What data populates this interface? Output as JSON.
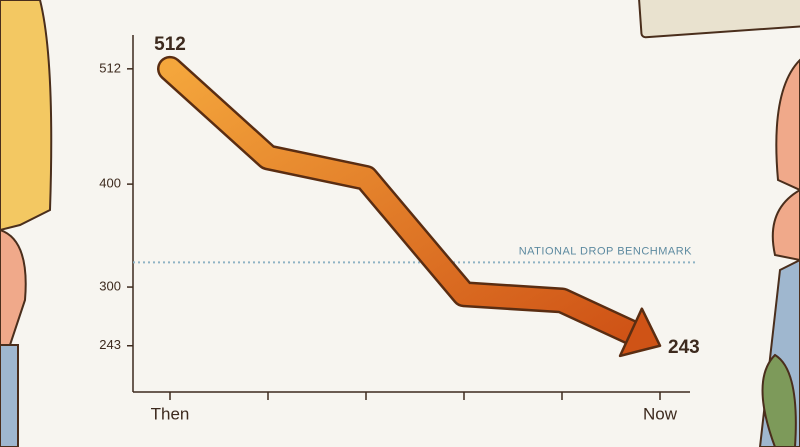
{
  "chart_data": {
    "type": "line",
    "categories": [
      "Then",
      null,
      null,
      null,
      null,
      "Now"
    ],
    "values": [
      512,
      426,
      406,
      293,
      287,
      243
    ],
    "color": "#e07a22",
    "ylim": [
      200,
      540
    ],
    "yticks": [
      243,
      300,
      400,
      512
    ],
    "benchmark": {
      "label": "NATIONAL DROP BENCHMARK",
      "value": 324,
      "color": "#8fb3c4"
    }
  }
}
